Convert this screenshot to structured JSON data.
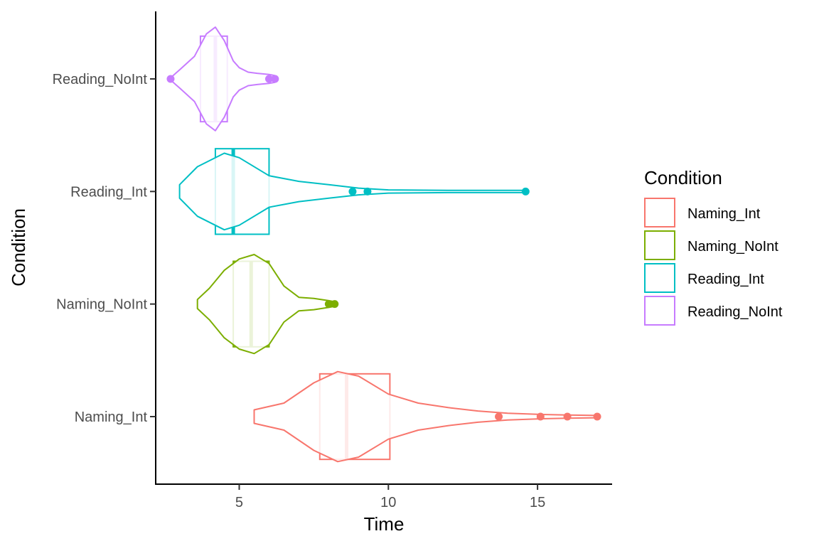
{
  "chart_data": {
    "type": "violin",
    "xlabel": "Time",
    "ylabel": "Condition",
    "xlim": [
      2.2,
      17.5
    ],
    "x_ticks": [
      5,
      10,
      15
    ],
    "grid": false,
    "legend_title": "Condition",
    "legend_position": "right",
    "series": [
      {
        "name": "Naming_Int",
        "color": "#F8766D",
        "violin_range": [
          5.5,
          17.0
        ],
        "box": {
          "q1": 7.7,
          "median": 8.6,
          "q3": 10.05
        },
        "outliers": [
          13.7,
          15.1,
          16.0,
          17.0
        ],
        "density": [
          [
            5.5,
            0.03
          ],
          [
            6.5,
            0.06
          ],
          [
            7.5,
            0.15
          ],
          [
            8.3,
            0.2
          ],
          [
            9.0,
            0.18
          ],
          [
            10.0,
            0.1
          ],
          [
            11.0,
            0.06
          ],
          [
            12.0,
            0.04
          ],
          [
            13.0,
            0.025
          ],
          [
            14.0,
            0.015
          ],
          [
            15.0,
            0.01
          ],
          [
            16.0,
            0.007
          ],
          [
            17.0,
            0.005
          ]
        ]
      },
      {
        "name": "Naming_NoInt",
        "color": "#7CAE00",
        "violin_range": [
          3.6,
          8.2
        ],
        "box": {
          "q1": 4.8,
          "median": 5.4,
          "q3": 6.0
        },
        "outliers": [
          8.0,
          8.2
        ],
        "density": [
          [
            3.6,
            0.02
          ],
          [
            4.0,
            0.07
          ],
          [
            4.5,
            0.15
          ],
          [
            5.0,
            0.2
          ],
          [
            5.5,
            0.22
          ],
          [
            6.0,
            0.18
          ],
          [
            6.5,
            0.08
          ],
          [
            7.0,
            0.03
          ],
          [
            7.5,
            0.025
          ],
          [
            8.0,
            0.015
          ],
          [
            8.2,
            0.01
          ]
        ]
      },
      {
        "name": "Reading_Int",
        "color": "#00BFC4",
        "violin_range": [
          3.0,
          14.6
        ],
        "box": {
          "q1": 4.2,
          "median": 4.8,
          "q3": 6.0
        },
        "outliers": [
          8.8,
          9.3,
          14.6
        ],
        "density": [
          [
            3.0,
            0.03
          ],
          [
            3.6,
            0.11
          ],
          [
            4.5,
            0.17
          ],
          [
            5.0,
            0.15
          ],
          [
            6.0,
            0.07
          ],
          [
            7.0,
            0.045
          ],
          [
            8.0,
            0.03
          ],
          [
            9.0,
            0.015
          ],
          [
            10.0,
            0.007
          ],
          [
            12.0,
            0.005
          ],
          [
            14.6,
            0.005
          ]
        ]
      },
      {
        "name": "Reading_NoInt",
        "color": "#C77CFF",
        "violin_range": [
          2.7,
          6.2
        ],
        "box": {
          "q1": 3.7,
          "median": 4.2,
          "q3": 4.6
        },
        "outliers": [
          2.7,
          6.0,
          6.2
        ],
        "density": [
          [
            2.7,
            0.005
          ],
          [
            3.0,
            0.04
          ],
          [
            3.5,
            0.1
          ],
          [
            3.9,
            0.2
          ],
          [
            4.2,
            0.23
          ],
          [
            4.5,
            0.17
          ],
          [
            4.8,
            0.08
          ],
          [
            5.0,
            0.05
          ],
          [
            5.3,
            0.03
          ],
          [
            5.6,
            0.025
          ],
          [
            6.0,
            0.02
          ],
          [
            6.2,
            0.015
          ]
        ]
      }
    ]
  }
}
